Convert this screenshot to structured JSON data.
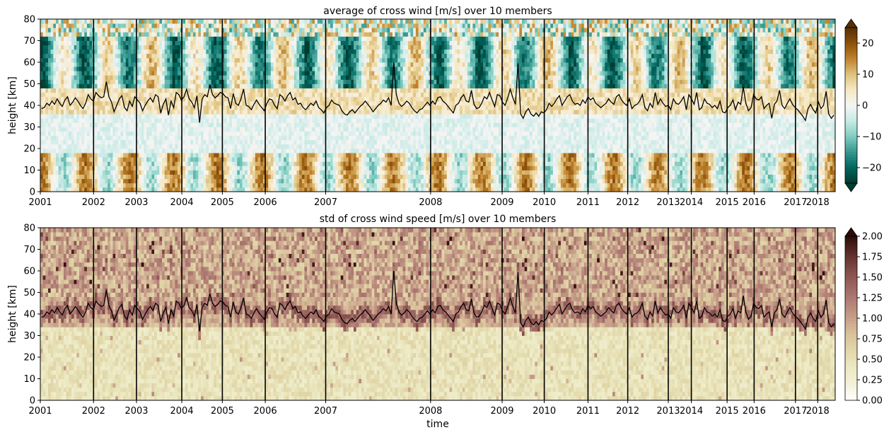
{
  "figure": {
    "xlabel": "time"
  },
  "chart_data": [
    {
      "type": "heatmap",
      "title": "average of cross wind [m/s] over 10 members",
      "xlabel": "",
      "ylabel": "height [km]",
      "ylim": [
        0,
        80
      ],
      "yticks": [
        0,
        10,
        20,
        30,
        40,
        50,
        60,
        70,
        80
      ],
      "colormap": "BrBG",
      "colorbar": {
        "ticks": [
          "20",
          "10",
          "0",
          "−10",
          "−20"
        ],
        "tick_values": [
          20,
          10,
          0,
          -10,
          -20
        ],
        "vmin": -25,
        "vmax": 25,
        "extend": "both",
        "colors": [
          "#003c30",
          "#01665e",
          "#35978f",
          "#80cdc1",
          "#c7eae5",
          "#f5f5f5",
          "#f6e8c3",
          "#dfc27d",
          "#bf812d",
          "#8c510a",
          "#543005"
        ]
      },
      "series_line": {
        "name": "",
        "color": "#000000"
      }
    },
    {
      "type": "heatmap",
      "title": "std of cross wind speed [m/s] over 10 members",
      "xlabel": "time",
      "ylabel": "height [km]",
      "ylim": [
        0,
        80
      ],
      "yticks": [
        0,
        10,
        20,
        30,
        40,
        50,
        60,
        70,
        80
      ],
      "colormap": "pink_r",
      "colorbar": {
        "ticks": [
          "2.00",
          "1.75",
          "1.50",
          "1.25",
          "1.00",
          "0.75",
          "0.50",
          "0.25",
          "0.00"
        ],
        "tick_values": [
          2.0,
          1.75,
          1.5,
          1.25,
          1.0,
          0.75,
          0.5,
          0.25,
          0.0
        ],
        "vmin": 0,
        "vmax": 2,
        "extend": "max",
        "colors": [
          "#ffffff",
          "#f3f1d8",
          "#ece9c3",
          "#e2d8aa",
          "#d9c29c",
          "#c79f8a",
          "#b27f76",
          "#9b6460",
          "#7f4a46",
          "#5b2a27",
          "#2c0b08"
        ]
      },
      "series_line": {
        "name": "",
        "color": "#000000"
      }
    }
  ],
  "x_axis": {
    "tick_labels": [
      "2001",
      "2002",
      "2003",
      "2004",
      "2005",
      "2006",
      "2007",
      "2008",
      "2009",
      "2010",
      "2011",
      "2012",
      "2013",
      "2014",
      "2015",
      "2016",
      "2017",
      "2018"
    ],
    "year_boundaries": [
      2001,
      2002,
      2003,
      2004,
      2005,
      2006,
      2007,
      2008,
      2009,
      2010,
      2011,
      2012,
      2013,
      2014,
      2015,
      2016,
      2017,
      2018
    ],
    "tick_fraction": [
      0.0,
      0.067,
      0.121,
      0.178,
      0.229,
      0.283,
      0.359,
      0.491,
      0.581,
      0.634,
      0.689,
      0.739,
      0.79,
      0.819,
      0.864,
      0.898,
      0.95,
      0.978
    ]
  },
  "stratopause_height_km": [
    38.5,
    39.0,
    41.0,
    40.0,
    42.0,
    40.5,
    43.0,
    41.0,
    39.5,
    42.5,
    44.0,
    40.0,
    41.5,
    43.5,
    42.0,
    40.0,
    38.5,
    41.0,
    45.0,
    43.0,
    42.0,
    46.0,
    44.5,
    43.5,
    44.0,
    51.0,
    44.0,
    41.5,
    37.0,
    40.0,
    43.0,
    44.5,
    39.0,
    37.5,
    42.0,
    39.5,
    44.0,
    42.5,
    41.0,
    37.5,
    40.0,
    42.0,
    43.5,
    41.5,
    45.0,
    44.0,
    36.5,
    40.5,
    43.0,
    35.5,
    42.0,
    39.0,
    46.0,
    45.0,
    42.5,
    44.0,
    47.5,
    43.0,
    41.5,
    39.0,
    44.5,
    32.0,
    43.0,
    45.0,
    44.0,
    49.5,
    45.0,
    43.5,
    44.5,
    46.0,
    45.5,
    44.0,
    43.5,
    38.5,
    45.5,
    41.0,
    40.0,
    43.0,
    47.5,
    40.0,
    39.5,
    38.0,
    40.5,
    42.5,
    40.5,
    39.0,
    37.5,
    41.0,
    43.0,
    42.5,
    40.0,
    38.5,
    45.0,
    44.0,
    42.0,
    44.5,
    46.0,
    42.5,
    43.5,
    40.5,
    41.0,
    39.0,
    38.0,
    39.5,
    41.0,
    40.0,
    42.0,
    39.0,
    38.0,
    36.5,
    39.0,
    40.0,
    42.5,
    41.0,
    40.5,
    40.0,
    37.5,
    36.0,
    35.5,
    37.0,
    38.0,
    36.5,
    38.0,
    39.5,
    40.5,
    42.0,
    40.5,
    39.0,
    37.0,
    38.5,
    40.0,
    41.0,
    42.5,
    41.5,
    43.5,
    40.0,
    60.0,
    45.0,
    41.0,
    39.5,
    40.5,
    42.0,
    41.0,
    39.0,
    37.5,
    36.5,
    38.0,
    38.5,
    40.0,
    41.5,
    40.0,
    42.0,
    40.5,
    43.5,
    44.0,
    42.0,
    41.0,
    39.5,
    38.0,
    36.5,
    40.0,
    41.0,
    43.5,
    45.0,
    42.0,
    41.5,
    47.0,
    40.5,
    38.5,
    39.0,
    41.0,
    44.0,
    43.0,
    46.0,
    42.5,
    39.5,
    45.0,
    44.5,
    41.5,
    40.0,
    43.5,
    47.5,
    43.5,
    40.5,
    59.5,
    36.0,
    34.0,
    37.0,
    38.5,
    36.0,
    35.0,
    36.5,
    35.0,
    37.0,
    36.5,
    38.0,
    41.0,
    39.5,
    41.0,
    43.0,
    44.5,
    40.0,
    42.0,
    44.0,
    45.0,
    42.0,
    40.5,
    41.0,
    40.0,
    42.5,
    41.0,
    44.0,
    42.5,
    43.5,
    41.0,
    40.0,
    39.0,
    40.0,
    41.0,
    43.0,
    41.5,
    40.5,
    44.0,
    45.0,
    42.5,
    41.0,
    40.0,
    43.0,
    38.5,
    40.0,
    40.5,
    42.0,
    45.0,
    39.0,
    37.5,
    41.0,
    39.0,
    46.0,
    40.5,
    43.0,
    41.0,
    39.5,
    40.0,
    38.0,
    43.0,
    41.0,
    40.5,
    42.0,
    44.0,
    38.0,
    45.0,
    43.0,
    40.5,
    46.0,
    38.0,
    39.0,
    43.0,
    41.0,
    40.5,
    39.0,
    40.0,
    38.5,
    42.0,
    37.0,
    36.5,
    39.0,
    40.0,
    42.5,
    38.0,
    41.5,
    40.5,
    48.5,
    41.0,
    37.5,
    39.0,
    45.0,
    43.0,
    42.5,
    44.0,
    38.5,
    40.0,
    41.0,
    34.0,
    40.5,
    42.0,
    47.0,
    40.0,
    38.5,
    41.0,
    43.0,
    40.5,
    39.0,
    38.0,
    36.5,
    35.0,
    33.0,
    38.5,
    40.5,
    38.0,
    36.5,
    41.5,
    38.5,
    40.0,
    46.5,
    36.0,
    34.0,
    35.5
  ]
}
